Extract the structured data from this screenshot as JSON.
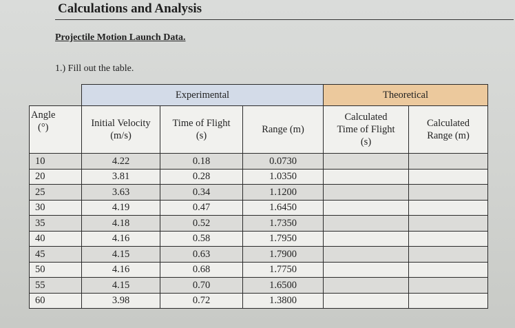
{
  "header": {
    "title": "Calculations and Analysis",
    "subtitle": "Projectile Motion Launch Data.",
    "instruction": "1.) Fill out the table."
  },
  "table": {
    "groups": {
      "experimental": "Experimental",
      "theoretical": "Theoretical"
    },
    "columns": {
      "angle": {
        "line1": "Angle",
        "line2": "(°)"
      },
      "velocity": {
        "line1": "Initial Velocity",
        "line2": "(m/s)"
      },
      "time": {
        "line1": "Time of Flight",
        "line2": "(s)"
      },
      "range": {
        "line1": "Range (m)"
      },
      "calc_time": {
        "line1": "Calculated",
        "line2": "Time of Flight",
        "line3": "(s)"
      },
      "calc_range": {
        "line1": "Calculated",
        "line2": "Range (m)"
      }
    },
    "rows": [
      {
        "angle": "10",
        "velocity": "4.22",
        "time": "0.18",
        "range": "0.0730",
        "calc_time": "",
        "calc_range": ""
      },
      {
        "angle": "20",
        "velocity": "3.81",
        "time": "0.28",
        "range": "1.0350",
        "calc_time": "",
        "calc_range": ""
      },
      {
        "angle": "25",
        "velocity": "3.63",
        "time": "0.34",
        "range": "1.1200",
        "calc_time": "",
        "calc_range": ""
      },
      {
        "angle": "30",
        "velocity": "4.19",
        "time": "0.47",
        "range": "1.6450",
        "calc_time": "",
        "calc_range": ""
      },
      {
        "angle": "35",
        "velocity": "4.18",
        "time": "0.52",
        "range": "1.7350",
        "calc_time": "",
        "calc_range": ""
      },
      {
        "angle": "40",
        "velocity": "4.16",
        "time": "0.58",
        "range": "1.7950",
        "calc_time": "",
        "calc_range": ""
      },
      {
        "angle": "45",
        "velocity": "4.15",
        "time": "0.63",
        "range": "1.7900",
        "calc_time": "",
        "calc_range": ""
      },
      {
        "angle": "50",
        "velocity": "4.16",
        "time": "0.68",
        "range": "1.7750",
        "calc_time": "",
        "calc_range": ""
      },
      {
        "angle": "55",
        "velocity": "4.15",
        "time": "0.70",
        "range": "1.6500",
        "calc_time": "",
        "calc_range": ""
      },
      {
        "angle": "60",
        "velocity": "3.98",
        "time": "0.72",
        "range": "1.3800",
        "calc_time": "",
        "calc_range": ""
      }
    ],
    "colors": {
      "experimental_header": "#d3dbe8",
      "theoretical_header": "#ecc99d"
    }
  }
}
